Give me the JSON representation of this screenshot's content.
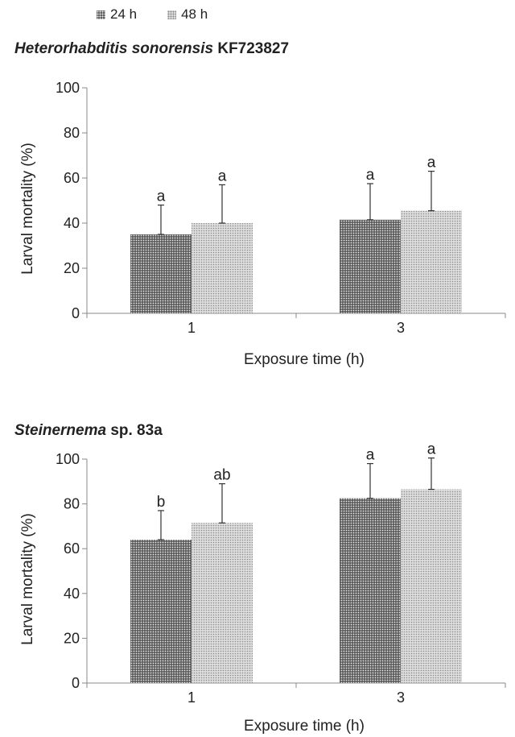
{
  "legend": [
    {
      "label": "24 h",
      "pattern": "dark"
    },
    {
      "label": "48 h",
      "pattern": "light"
    }
  ],
  "colors": {
    "dark_bar": "#5a5a5a",
    "light_bar": "#dcdcdc",
    "axis": "#888888",
    "text": "#222222"
  },
  "chart_data": [
    {
      "type": "bar",
      "title_italic": "Heterorhabditis sonorensis",
      "title_rest": " KF723827",
      "xlabel": "Exposure time (h)",
      "ylabel": "Larval mortality (%)",
      "ylim": [
        0,
        100
      ],
      "yticks": [
        0,
        20,
        40,
        60,
        80,
        100
      ],
      "categories": [
        "1",
        "3"
      ],
      "series": [
        {
          "name": "24 h",
          "values": [
            35,
            41.5
          ],
          "error": [
            13,
            16
          ],
          "letters": [
            "a",
            "a"
          ]
        },
        {
          "name": "48 h",
          "values": [
            40,
            45.5
          ],
          "error": [
            17,
            17.5
          ],
          "letters": [
            "a",
            "a"
          ]
        }
      ],
      "grid": false
    },
    {
      "type": "bar",
      "title_italic": "Steinernema",
      "title_rest": " sp. 83a",
      "xlabel": "Exposure time (h)",
      "ylabel": "Larval mortality (%)",
      "ylim": [
        0,
        100
      ],
      "yticks": [
        0,
        20,
        40,
        60,
        80,
        100
      ],
      "categories": [
        "1",
        "3"
      ],
      "series": [
        {
          "name": "24 h",
          "values": [
            64,
            82.5
          ],
          "error": [
            13,
            15.5
          ],
          "letters": [
            "b",
            "a"
          ]
        },
        {
          "name": "48 h",
          "values": [
            71.5,
            86.5
          ],
          "error": [
            17.5,
            14
          ],
          "letters": [
            "ab",
            "a"
          ]
        }
      ],
      "grid": false
    }
  ]
}
